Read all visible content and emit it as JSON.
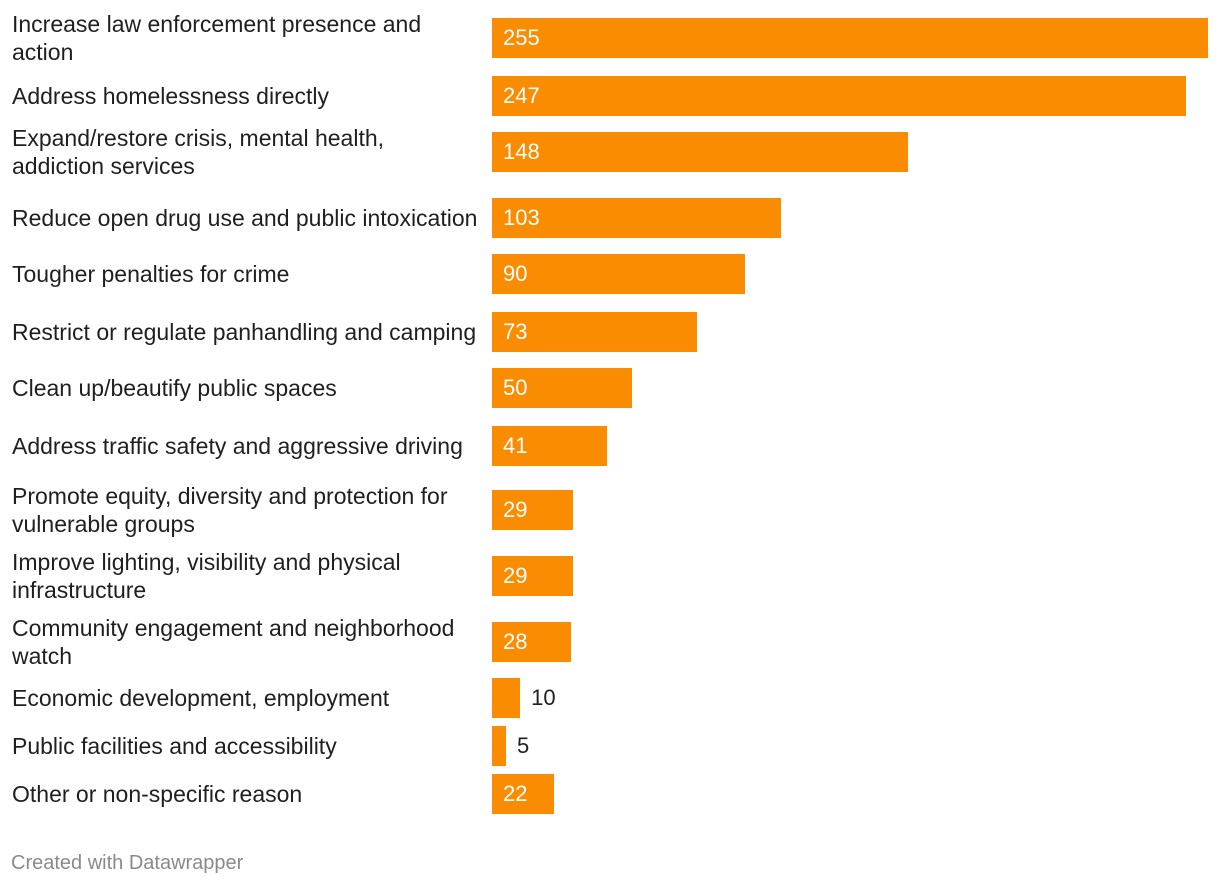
{
  "chart_data": {
    "type": "bar",
    "orientation": "horizontal",
    "categories": [
      "Increase law enforcement presence and action",
      "Address homelessness directly",
      "Expand/restore crisis, mental health, addiction services",
      "Reduce open drug use and public intoxication",
      "Tougher penalties for crime",
      "Restrict or regulate panhandling and camping",
      "Clean up/beautify public spaces",
      "Address traffic safety and aggressive driving",
      "Promote equity, diversity and protection for vulnerable groups",
      "Improve lighting, visibility and physical infrastructure",
      "Community engagement and neighborhood watch",
      "Economic development, employment",
      "Public facilities and accessibility",
      "Other or non-specific reason"
    ],
    "values": [
      255,
      247,
      148,
      103,
      90,
      73,
      50,
      41,
      29,
      29,
      28,
      10,
      5,
      22
    ],
    "bar_color": "#f98c00",
    "xlim": [
      0,
      255
    ],
    "grid": false,
    "title": "",
    "xlabel": "",
    "ylabel": ""
  },
  "footer": {
    "credit": "Created with Datawrapper"
  }
}
